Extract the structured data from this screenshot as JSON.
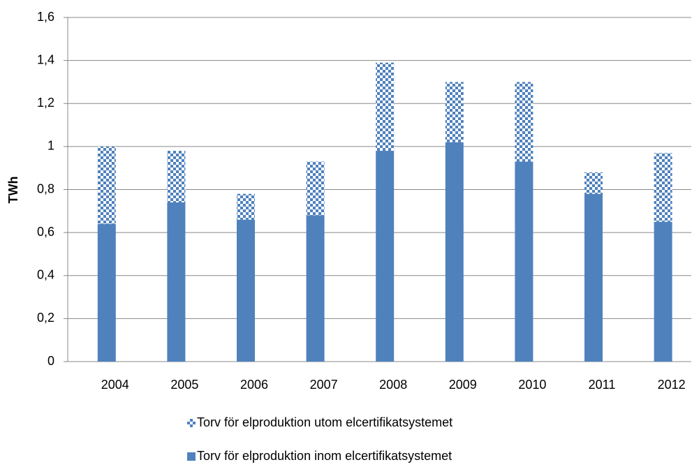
{
  "chart_data": {
    "type": "stacked_bar",
    "y_label": "TWh",
    "categories": [
      "2004",
      "2005",
      "2006",
      "2007",
      "2008",
      "2009",
      "2010",
      "2011",
      "2012"
    ],
    "series": [
      {
        "name": "Torv för elproduktion inom elcertifikatsystemet",
        "color": "#4f81bd",
        "pattern": "solid",
        "values": [
          0.64,
          0.74,
          0.66,
          0.68,
          0.98,
          1.02,
          0.93,
          0.78,
          0.65
        ]
      },
      {
        "name": "Torv för elproduktion utom elcertifikatsystemet",
        "color": "#4f81bd",
        "pattern": "checkered",
        "values": [
          0.36,
          0.24,
          0.12,
          0.25,
          0.41,
          0.28,
          0.37,
          0.1,
          0.32
        ]
      }
    ],
    "ylim": [
      0,
      1.6
    ],
    "yticks": [
      0,
      {
        "value": 0.2,
        "label": "0,2"
      },
      {
        "value": 0.4,
        "label": "0,4"
      },
      {
        "value": 0.6,
        "label": "0,6"
      },
      {
        "value": 0.8,
        "label": "0,8"
      },
      1,
      {
        "value": 1.2,
        "label": "1,2"
      },
      {
        "value": 1.4,
        "label": "1,4"
      },
      {
        "value": 1.6,
        "label": "1,6"
      }
    ],
    "grid": true
  }
}
